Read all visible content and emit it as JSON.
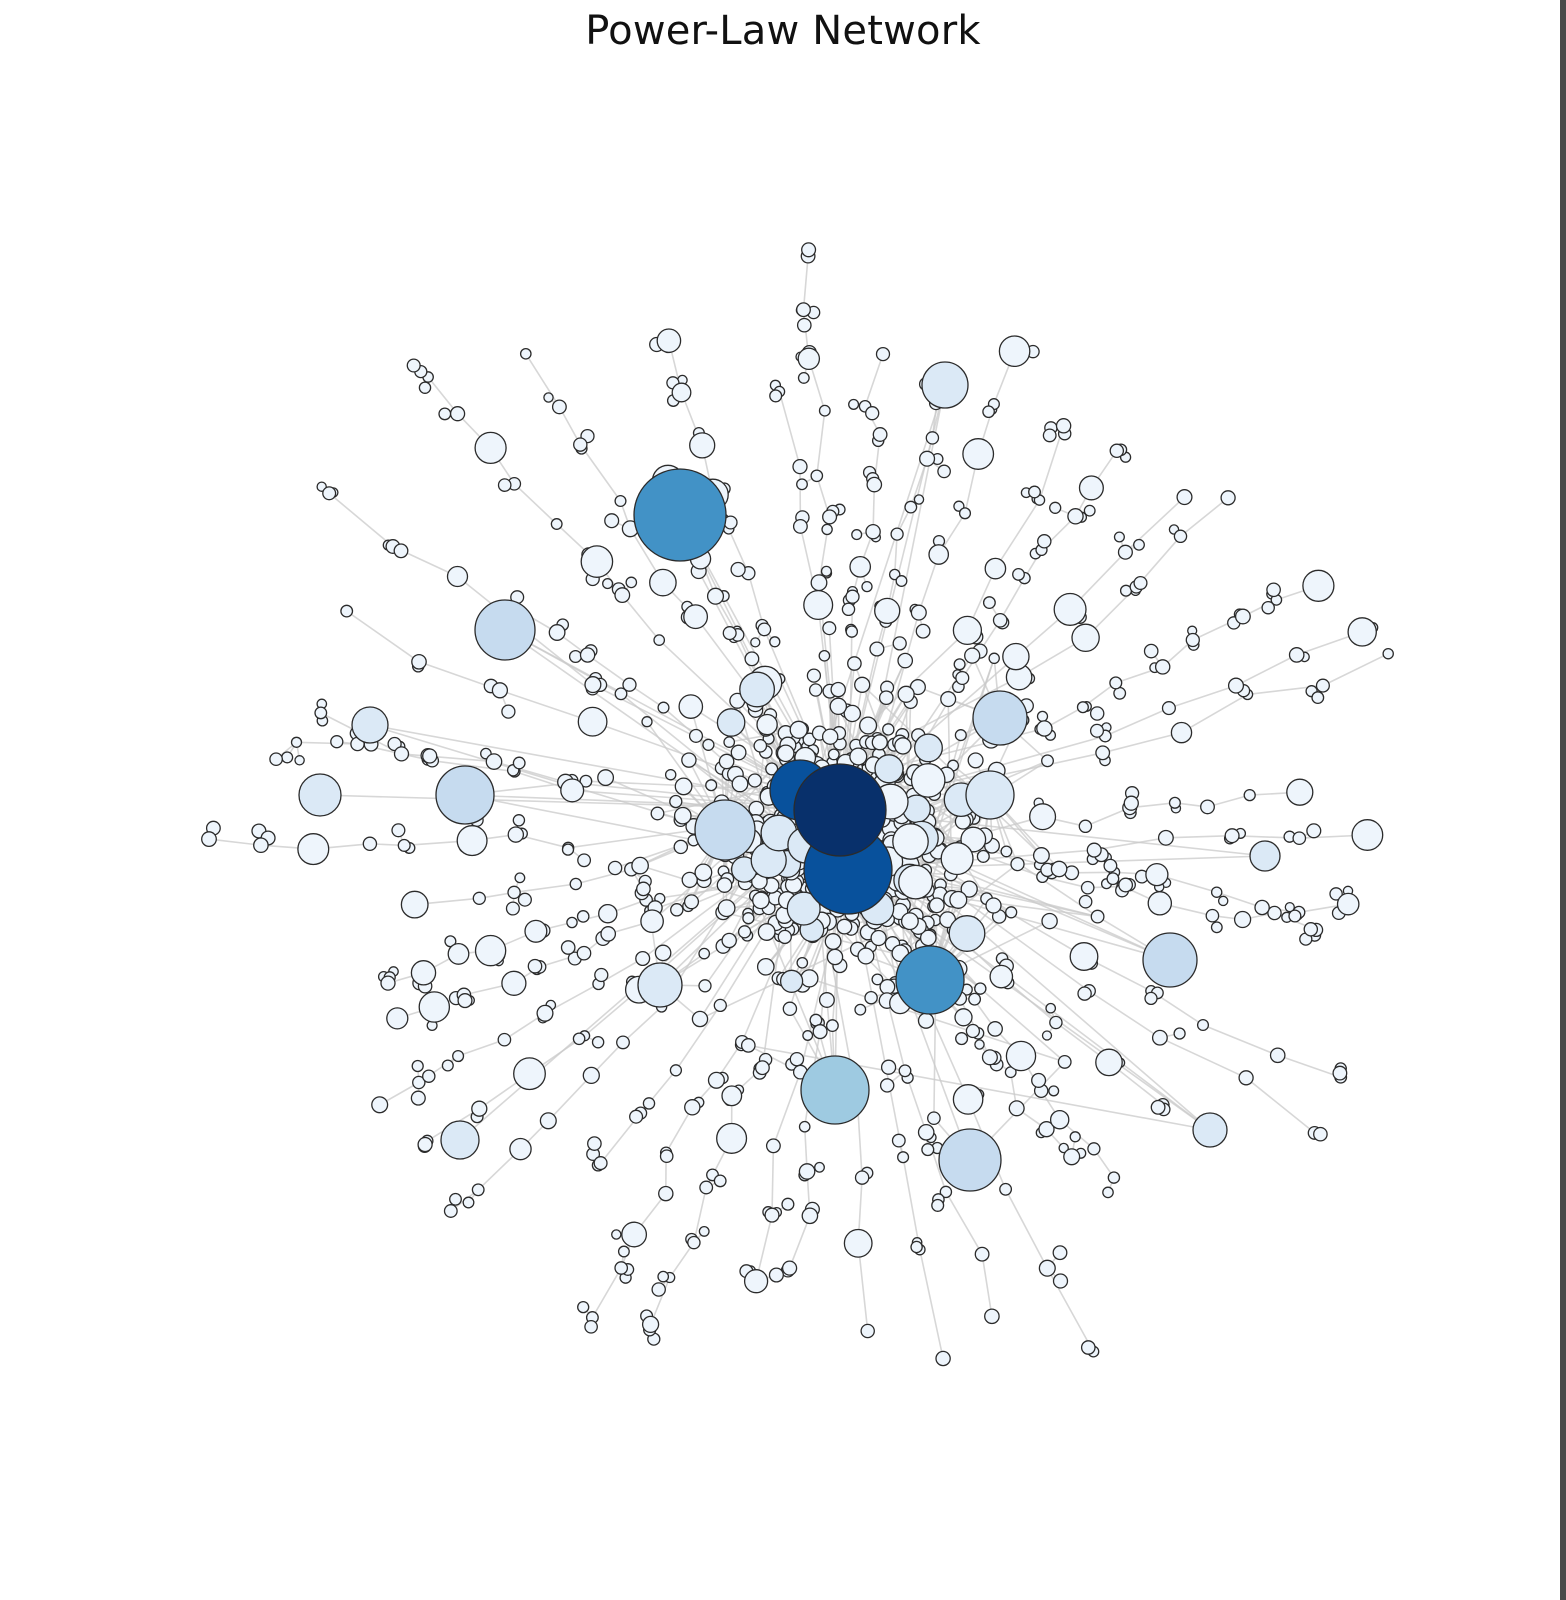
{
  "title": "Power-Law Network",
  "colors": {
    "background": "#ffffff",
    "edge": "#c9c9c9",
    "node_stroke": "#2b2b2b",
    "scale": [
      "#eef5fc",
      "#dbe9f6",
      "#c6dbef",
      "#9ecae1",
      "#6baed6",
      "#4292c6",
      "#2171b5",
      "#08519c",
      "#08306b"
    ]
  }
}
